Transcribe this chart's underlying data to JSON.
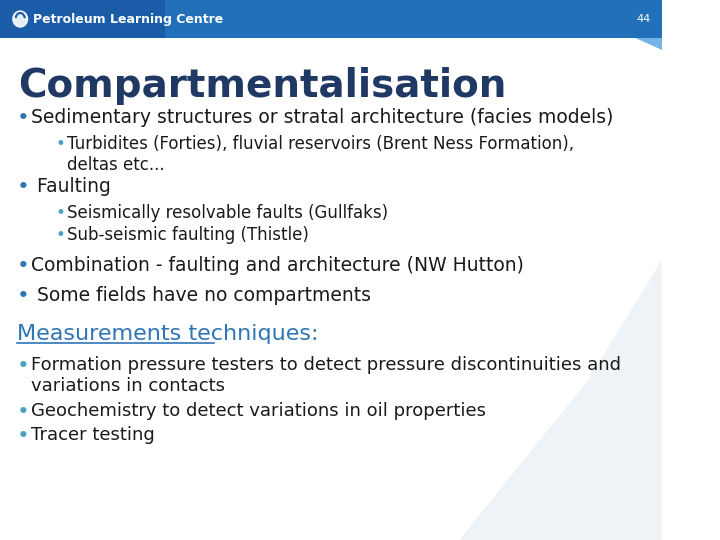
{
  "title": "Compartmentalisation",
  "title_color": "#1F3864",
  "title_fontsize": 28,
  "header_bg_color": "#1a5ca8",
  "header_text": "Petroleum Learning Centre",
  "header_text_color": "#ffffff",
  "slide_bg_color": "#ffffff",
  "page_number": "44",
  "bullet_color": "#2E75B6",
  "sub_bullet_color": "#4BA3C3",
  "body_text_color": "#1a1a1a",
  "section_heading": "Measurements techniques:",
  "section_heading_color": "#2E75B6",
  "bullet_fontsize": 13.5,
  "sub_bullet_fontsize": 12.0,
  "section_heading_fontsize": 16,
  "bullets": [
    {
      "text": "Sedimentary structures or stratal architecture (facies models)",
      "level": 1,
      "sub_bullets": [
        "Turbidites (Forties), fluvial reservoirs (Brent Ness Formation),\ndeltas etc..."
      ]
    },
    {
      "text": " Faulting",
      "level": 1,
      "sub_bullets": [
        "Seismically resolvable faults (Gullfaks)",
        "Sub-seismic faulting (Thistle)"
      ]
    },
    {
      "text": "Combination - faulting and architecture (NW Hutton)",
      "level": 1,
      "sub_bullets": []
    },
    {
      "text": " Some fields have no compartments",
      "level": 1,
      "sub_bullets": []
    }
  ],
  "measurement_bullets": [
    "Formation pressure testers to detect pressure discontinuities and\nvariations in contacts",
    "Geochemistry to detect variations in oil properties",
    "Tracer testing"
  ]
}
